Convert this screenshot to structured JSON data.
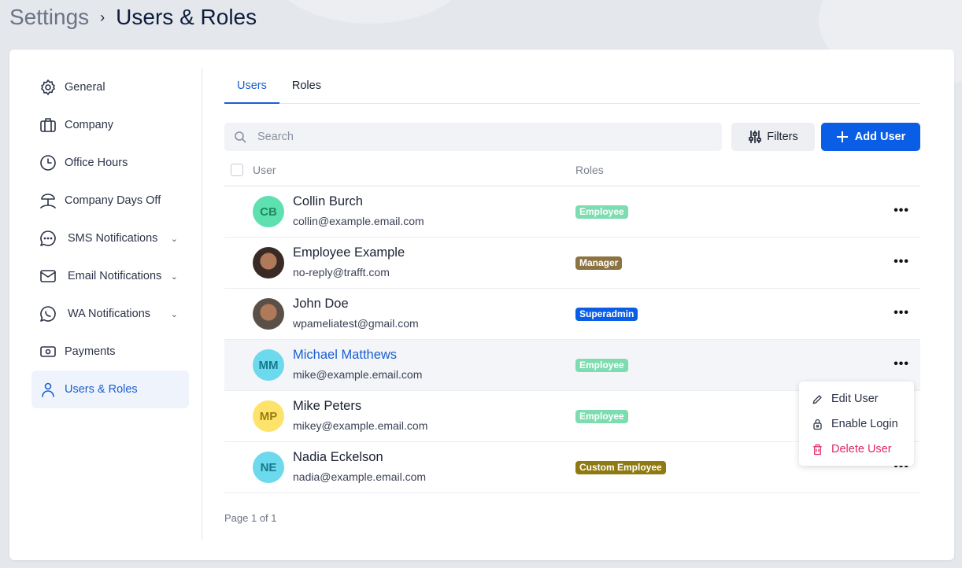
{
  "breadcrumb": {
    "parent": "Settings",
    "separator": "›",
    "current": "Users & Roles"
  },
  "sidebar": {
    "items": [
      {
        "label": "General",
        "icon": "gear-icon"
      },
      {
        "label": "Company",
        "icon": "briefcase-icon"
      },
      {
        "label": "Office Hours",
        "icon": "clock-icon"
      },
      {
        "label": "Company Days Off",
        "icon": "beach-umbrella-icon"
      },
      {
        "label": "SMS Notifications",
        "icon": "chat-icon",
        "expandable": true
      },
      {
        "label": "Email Notifications",
        "icon": "mail-icon",
        "expandable": true
      },
      {
        "label": "WA Notifications",
        "icon": "whatsapp-icon",
        "expandable": true
      },
      {
        "label": "Payments",
        "icon": "money-icon"
      },
      {
        "label": "Users & Roles",
        "icon": "user-icon",
        "active": true
      }
    ]
  },
  "tabs": [
    {
      "label": "Users",
      "active": true
    },
    {
      "label": "Roles"
    }
  ],
  "search": {
    "placeholder": "Search",
    "value": ""
  },
  "toolbar": {
    "filters_label": "Filters",
    "add_label": "Add User"
  },
  "table": {
    "headers": {
      "user": "User",
      "roles": "Roles"
    },
    "rows": [
      {
        "name": "Collin Burch",
        "email": "collin@example.email.com",
        "initials": "CB",
        "avatar_color": "#5fe0b0",
        "initials_color": "#1e8a5c",
        "role": "Employee",
        "role_color": "#7ddcb0"
      },
      {
        "name": "Employee Example",
        "email": "no-reply@trafft.com",
        "avatar": "photo",
        "avatar_color": "#3a2a25",
        "role": "Manager",
        "role_color": "#8c7442"
      },
      {
        "name": "John Doe",
        "email": "wpameliatest@gmail.com",
        "avatar": "photo",
        "avatar_color": "#5b5048",
        "role": "Superadmin",
        "role_color": "#0a5ee6"
      },
      {
        "name": "Michael Matthews",
        "email": "mike@example.email.com",
        "initials": "MM",
        "avatar_color": "#6dd9ec",
        "initials_color": "#16788c",
        "role": "Employee",
        "role_color": "#7ddcb0",
        "highlighted": true
      },
      {
        "name": "Mike Peters",
        "email": "mikey@example.email.com",
        "initials": "MP",
        "avatar_color": "#fde36a",
        "initials_color": "#9a7d10",
        "role": "Employee",
        "role_color": "#7ddcb0"
      },
      {
        "name": "Nadia Eckelson",
        "email": "nadia@example.email.com",
        "initials": "NE",
        "avatar_color": "#6dd9ec",
        "initials_color": "#16788c",
        "role": "Custom Employee",
        "role_color": "#8f7a12"
      }
    ]
  },
  "pagination": {
    "text": "Page 1 of 1"
  },
  "context_menu": {
    "items": [
      {
        "label": "Edit User",
        "icon": "pencil-icon"
      },
      {
        "label": "Enable Login",
        "icon": "lock-icon"
      },
      {
        "label": "Delete User",
        "icon": "trash-icon",
        "danger": true
      }
    ]
  }
}
